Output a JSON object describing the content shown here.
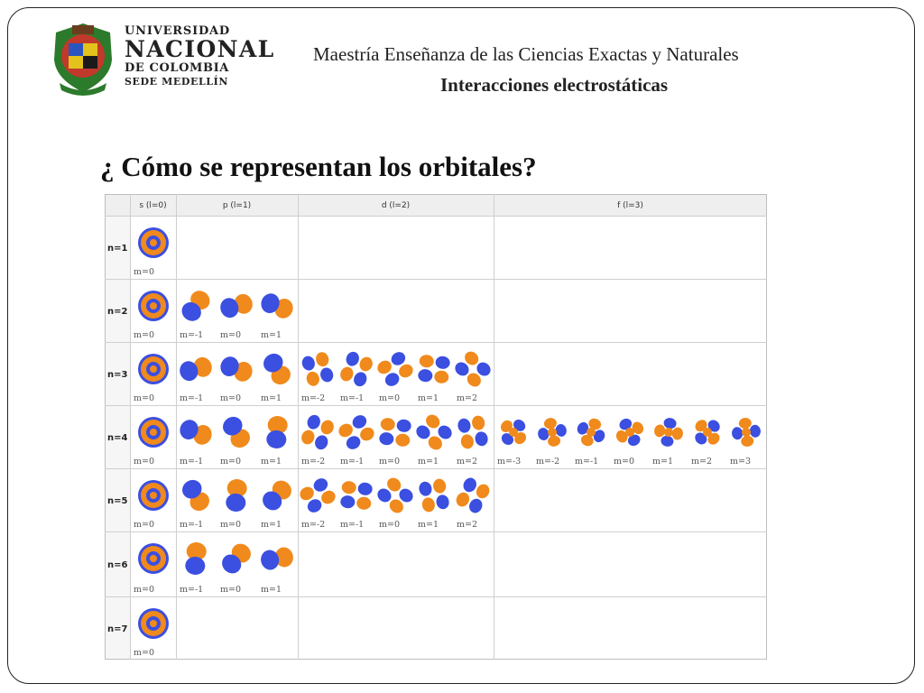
{
  "header": {
    "university": {
      "line1": "UNIVERSIDAD",
      "line2": "NACIONAL",
      "line3": "DE COLOMBIA",
      "line4": "SEDE MEDELLÍN"
    },
    "program": "Maestría Enseñanza de las Ciencias Exactas  y Naturales",
    "subject": "Interacciones electrostáticas"
  },
  "slide": {
    "title": "¿ Cómo se representan los orbitales?"
  },
  "orbital_table": {
    "columns": [
      "s (l=0)",
      "p (l=1)",
      "d (l=2)",
      "f (l=3)"
    ],
    "rows": [
      {
        "label": "n=1",
        "m": {
          "s": [
            "m=0"
          ],
          "p": [],
          "d": [],
          "f": []
        }
      },
      {
        "label": "n=2",
        "m": {
          "s": [
            "m=0"
          ],
          "p": [
            "m=-1",
            "m=0",
            "m=1"
          ],
          "d": [],
          "f": []
        }
      },
      {
        "label": "n=3",
        "m": {
          "s": [
            "m=0"
          ],
          "p": [
            "m=-1",
            "m=0",
            "m=1"
          ],
          "d": [
            "m=-2",
            "m=-1",
            "m=0",
            "m=1",
            "m=2"
          ],
          "f": []
        }
      },
      {
        "label": "n=4",
        "m": {
          "s": [
            "m=0"
          ],
          "p": [
            "m=-1",
            "m=0",
            "m=1"
          ],
          "d": [
            "m=-2",
            "m=-1",
            "m=0",
            "m=1",
            "m=2"
          ],
          "f": [
            "m=-3",
            "m=-2",
            "m=-1",
            "m=0",
            "m=1",
            "m=2",
            "m=3"
          ]
        }
      },
      {
        "label": "n=5",
        "m": {
          "s": [
            "m=0"
          ],
          "p": [
            "m=-1",
            "m=0",
            "m=1"
          ],
          "d": [
            "m=-2",
            "m=-1",
            "m=0",
            "m=1",
            "m=2"
          ],
          "f": []
        }
      },
      {
        "label": "n=6",
        "m": {
          "s": [
            "m=0"
          ],
          "p": [
            "m=-1",
            "m=0",
            "m=1"
          ],
          "d": [],
          "f": []
        }
      },
      {
        "label": "n=7",
        "m": {
          "s": [
            "m=0"
          ],
          "p": [],
          "d": [],
          "f": []
        }
      }
    ],
    "colors": {
      "lobe_positive": "#f08a1c",
      "lobe_negative": "#3b4fe0",
      "header_bg": "#efefef",
      "grid": "#cfcfcf"
    }
  }
}
